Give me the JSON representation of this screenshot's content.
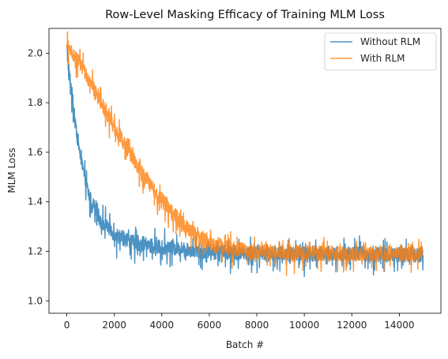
{
  "chart_data": {
    "type": "line",
    "title": "Row-Level Masking Efficacy of Training MLM Loss",
    "xlabel": "Batch #",
    "ylabel": "MLM Loss",
    "xlim": [
      -750,
      15750
    ],
    "ylim": [
      0.95,
      2.1
    ],
    "xticks": [
      0,
      2000,
      4000,
      6000,
      8000,
      10000,
      12000,
      14000
    ],
    "yticks": [
      1.0,
      1.2,
      1.4,
      1.6,
      1.8,
      2.0
    ],
    "ytick_labels": [
      "1.0",
      "1.2",
      "1.4",
      "1.6",
      "1.8",
      "2.0"
    ],
    "grid": false,
    "legend_position": "upper-right",
    "series": [
      {
        "name": "Without RLM",
        "color": "#1f77b4",
        "alpha": 0.8,
        "x": [
          0,
          100,
          200,
          300,
          400,
          500,
          600,
          700,
          800,
          900,
          1000,
          1200,
          1400,
          1600,
          1800,
          2000,
          2400,
          2800,
          3200,
          3600,
          4000,
          5000,
          6000,
          8000,
          10000,
          12000,
          15000
        ],
        "values": [
          2.02,
          1.92,
          1.85,
          1.76,
          1.69,
          1.63,
          1.57,
          1.52,
          1.48,
          1.44,
          1.41,
          1.37,
          1.33,
          1.31,
          1.29,
          1.27,
          1.25,
          1.24,
          1.23,
          1.22,
          1.215,
          1.21,
          1.2,
          1.19,
          1.19,
          1.19,
          1.185
        ],
        "noise": 0.03,
        "spike": 0.07
      },
      {
        "name": "With RLM",
        "color": "#ff7f0e",
        "alpha": 0.8,
        "x": [
          0,
          100,
          300,
          600,
          1000,
          1500,
          2000,
          2500,
          3000,
          3500,
          4000,
          4500,
          5000,
          5500,
          6000,
          7000,
          8000,
          10000,
          12000,
          15000
        ],
        "values": [
          2.03,
          2.02,
          1.99,
          1.95,
          1.88,
          1.79,
          1.7,
          1.62,
          1.54,
          1.47,
          1.41,
          1.35,
          1.3,
          1.26,
          1.23,
          1.21,
          1.2,
          1.195,
          1.19,
          1.19
        ],
        "noise": 0.03,
        "spike": 0.065
      }
    ]
  }
}
